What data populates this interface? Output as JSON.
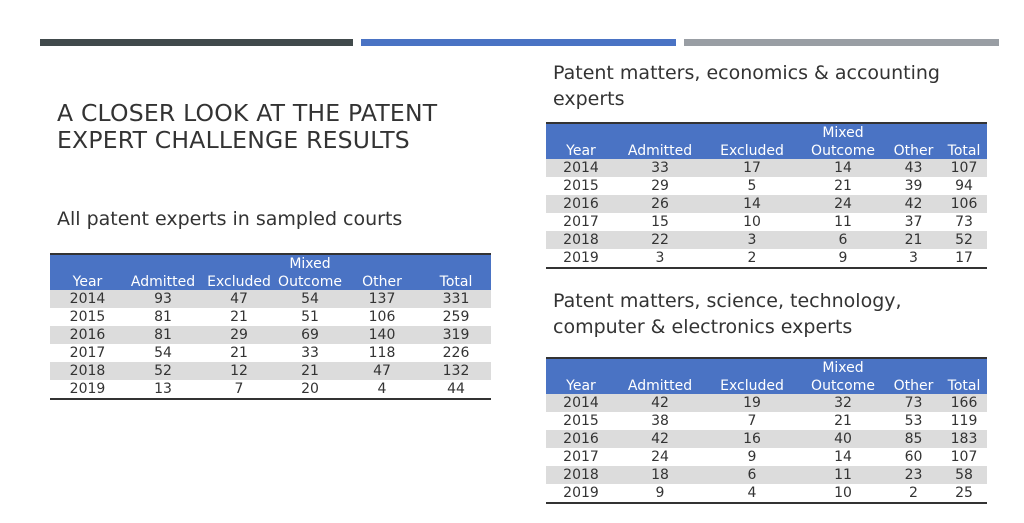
{
  "title": "A CLOSER LOOK AT THE PATENT EXPERT CHALLENGE RESULTS",
  "tables": [
    {
      "caption": "All patent experts in sampled courts",
      "headers": {
        "year": "Year",
        "admitted": "Admitted",
        "excluded": "Excluded",
        "mixed_top": "Mixed",
        "mixed_bottom": "Outcome",
        "other": "Other",
        "total": "Total"
      },
      "rows": [
        [
          "2014",
          "93",
          "47",
          "54",
          "137",
          "331"
        ],
        [
          "2015",
          "81",
          "21",
          "51",
          "106",
          "259"
        ],
        [
          "2016",
          "81",
          "29",
          "69",
          "140",
          "319"
        ],
        [
          "2017",
          "54",
          "21",
          "33",
          "118",
          "226"
        ],
        [
          "2018",
          "52",
          "12",
          "21",
          "47",
          "132"
        ],
        [
          "2019",
          "13",
          "7",
          "20",
          "4",
          "44"
        ]
      ]
    },
    {
      "caption": "Patent matters, economics & accounting experts",
      "headers": {
        "year": "Year",
        "admitted": "Admitted",
        "excluded": "Excluded",
        "mixed_top": "Mixed",
        "mixed_bottom": "Outcome",
        "other": "Other",
        "total": "Total"
      },
      "rows": [
        [
          "2014",
          "33",
          "17",
          "14",
          "43",
          "107"
        ],
        [
          "2015",
          "29",
          "5",
          "21",
          "39",
          "94"
        ],
        [
          "2016",
          "26",
          "14",
          "24",
          "42",
          "106"
        ],
        [
          "2017",
          "15",
          "10",
          "11",
          "37",
          "73"
        ],
        [
          "2018",
          "22",
          "3",
          "6",
          "21",
          "52"
        ],
        [
          "2019",
          "3",
          "2",
          "9",
          "3",
          "17"
        ]
      ]
    },
    {
      "caption": "Patent matters, science, technology, computer & electronics experts",
      "headers": {
        "year": "Year",
        "admitted": "Admitted",
        "excluded": "Excluded",
        "mixed_top": "Mixed",
        "mixed_bottom": "Outcome",
        "other": "Other",
        "total": "Total"
      },
      "rows": [
        [
          "2014",
          "42",
          "19",
          "32",
          "73",
          "166"
        ],
        [
          "2015",
          "38",
          "7",
          "21",
          "53",
          "119"
        ],
        [
          "2016",
          "42",
          "16",
          "40",
          "85",
          "183"
        ],
        [
          "2017",
          "24",
          "9",
          "14",
          "60",
          "107"
        ],
        [
          "2018",
          "18",
          "6",
          "11",
          "23",
          "58"
        ],
        [
          "2019",
          "9",
          "4",
          "10",
          "2",
          "25"
        ]
      ]
    }
  ],
  "colors": {
    "accent_blue": "#4a73c4",
    "bar_dark": "#414a4c",
    "bar_gray": "#999ea4",
    "row_shade": "#dcdcdc"
  }
}
